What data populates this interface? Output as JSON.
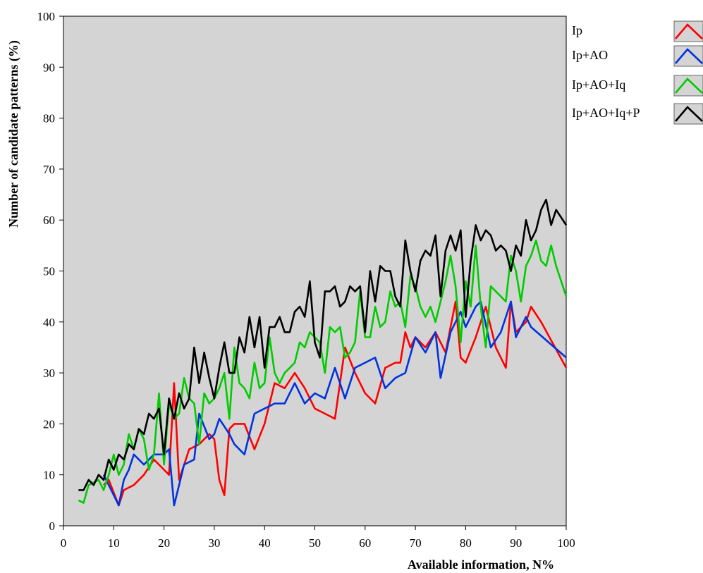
{
  "chart_data": {
    "type": "line",
    "title": "",
    "xlabel": "Available information, N%",
    "ylabel": "Number of candidate patterns (%)",
    "xlim": [
      0,
      100
    ],
    "ylim": [
      0,
      100
    ],
    "xticks": [
      0,
      10,
      20,
      30,
      40,
      50,
      60,
      70,
      80,
      90,
      100
    ],
    "yticks": [
      0,
      10,
      20,
      30,
      40,
      50,
      60,
      70,
      80,
      90,
      100
    ],
    "grid": false,
    "plot_background": "#d4d4d4",
    "legend_position": "right",
    "series": [
      {
        "name": "Ip",
        "color": "#ff0000",
        "x": [
          8,
          9,
          11,
          12,
          14,
          16,
          18,
          20,
          21,
          22,
          23,
          25,
          27,
          29,
          30,
          31,
          32,
          33,
          34,
          36,
          38,
          40,
          42,
          44,
          46,
          48,
          50,
          52,
          54,
          56,
          58,
          60,
          62,
          64,
          66,
          67,
          68,
          69,
          70,
          72,
          74,
          76,
          78,
          79,
          80,
          82,
          84,
          86,
          88,
          89,
          90,
          92,
          93,
          95,
          100
        ],
        "values": [
          8,
          9,
          4,
          7,
          8,
          10,
          13,
          11,
          10,
          28,
          9,
          15,
          16,
          18,
          17,
          9,
          6,
          19,
          20,
          20,
          15,
          20,
          28,
          27,
          30,
          27,
          23,
          22,
          21,
          35,
          30,
          26,
          24,
          31,
          32,
          32,
          38,
          35,
          37,
          35,
          38,
          34,
          44,
          33,
          32,
          37,
          43,
          35,
          31,
          44,
          38,
          40,
          43,
          40,
          31
        ]
      },
      {
        "name": "Ip+AO",
        "color": "#0033dd",
        "x": [
          8,
          10,
          11,
          12,
          13,
          14,
          16,
          18,
          20,
          21,
          22,
          24,
          26,
          27,
          29,
          30,
          31,
          33,
          34,
          36,
          38,
          40,
          42,
          44,
          46,
          48,
          50,
          52,
          54,
          56,
          58,
          60,
          62,
          64,
          66,
          68,
          70,
          72,
          74,
          75,
          77,
          79,
          80,
          82,
          83,
          85,
          87,
          89,
          90,
          92,
          93,
          100
        ],
        "values": [
          10,
          6,
          4,
          9,
          11,
          14,
          12,
          14,
          14,
          15,
          4,
          12,
          13,
          22,
          17,
          18,
          21,
          18,
          16,
          14,
          22,
          23,
          24,
          24,
          28,
          24,
          26,
          25,
          31,
          25,
          31,
          32,
          33,
          27,
          29,
          30,
          37,
          34,
          38,
          29,
          38,
          42,
          39,
          43,
          44,
          35,
          38,
          44,
          37,
          41,
          39,
          33
        ]
      },
      {
        "name": "Ip+AO+Iq",
        "color": "#00cc00",
        "x": [
          3,
          4,
          5,
          7,
          8,
          9,
          10,
          11,
          12,
          13,
          14,
          15,
          16,
          17,
          18,
          19,
          20,
          21,
          22,
          23,
          24,
          25,
          26,
          27,
          28,
          29,
          30,
          31,
          32,
          33,
          34,
          35,
          36,
          37,
          38,
          39,
          40,
          41,
          42,
          43,
          44,
          45,
          46,
          47,
          48,
          49,
          50,
          51,
          52,
          53,
          54,
          55,
          56,
          57,
          58,
          59,
          60,
          61,
          62,
          63,
          64,
          65,
          66,
          67,
          68,
          69,
          70,
          71,
          72,
          73,
          74,
          75,
          76,
          77,
          78,
          79,
          80,
          81,
          82,
          83,
          84,
          85,
          86,
          87,
          88,
          89,
          90,
          91,
          92,
          93,
          94,
          95,
          96,
          97,
          98,
          100
        ],
        "values": [
          5,
          4.5,
          8,
          9,
          7,
          10,
          14,
          10,
          12,
          18,
          15,
          19,
          17,
          11,
          14,
          26,
          12,
          24,
          21,
          22,
          29,
          25,
          24,
          16,
          26,
          24,
          25,
          27,
          30,
          21,
          35,
          28,
          27,
          25,
          32,
          27,
          28,
          37,
          30,
          28,
          30,
          31,
          32,
          36,
          35,
          38,
          37,
          36,
          30,
          39,
          38,
          39,
          33,
          34,
          36,
          46,
          37,
          37,
          43,
          39,
          40,
          46,
          43,
          44,
          39,
          49,
          47,
          43,
          41,
          43,
          40,
          44,
          48,
          53,
          47,
          36,
          48,
          43,
          55,
          43,
          35,
          47,
          46,
          45,
          44,
          53,
          50,
          44,
          51,
          53,
          56,
          52,
          51,
          55,
          51,
          45
        ]
      },
      {
        "name": "Ip+AO+Iq+P",
        "color": "#000000",
        "x": [
          3,
          4,
          5,
          6,
          7,
          8,
          9,
          10,
          11,
          12,
          13,
          14,
          15,
          16,
          17,
          18,
          19,
          20,
          21,
          22,
          23,
          24,
          25,
          26,
          27,
          28,
          29,
          30,
          31,
          32,
          33,
          34,
          35,
          36,
          37,
          38,
          39,
          40,
          41,
          42,
          43,
          44,
          45,
          46,
          47,
          48,
          49,
          50,
          51,
          52,
          53,
          54,
          55,
          56,
          57,
          58,
          59,
          60,
          61,
          62,
          63,
          64,
          65,
          66,
          67,
          68,
          69,
          70,
          71,
          72,
          73,
          74,
          75,
          76,
          77,
          78,
          79,
          80,
          81,
          82,
          83,
          84,
          85,
          86,
          87,
          88,
          89,
          90,
          91,
          92,
          93,
          94,
          95,
          96,
          97,
          98,
          100
        ],
        "values": [
          7,
          7,
          9,
          8,
          10,
          9,
          13,
          11,
          14,
          13,
          16,
          15,
          19,
          18,
          22,
          21,
          23,
          14,
          25,
          21,
          26,
          23,
          25,
          35,
          28,
          34,
          29,
          25,
          31,
          36,
          30,
          30,
          37,
          34,
          41,
          35,
          41,
          31,
          39,
          39,
          41,
          38,
          38,
          42,
          43,
          41,
          48,
          36,
          33,
          46,
          46,
          47,
          43,
          44,
          47,
          46,
          47,
          38,
          50,
          44,
          51,
          50,
          50,
          45,
          43,
          56,
          50,
          46,
          52,
          54,
          53,
          57,
          45,
          54,
          57,
          54,
          58,
          41,
          52,
          59,
          56,
          58,
          57,
          54,
          55,
          54,
          50,
          55,
          53,
          60,
          56,
          58,
          62,
          64,
          59,
          62,
          59
        ]
      }
    ]
  }
}
